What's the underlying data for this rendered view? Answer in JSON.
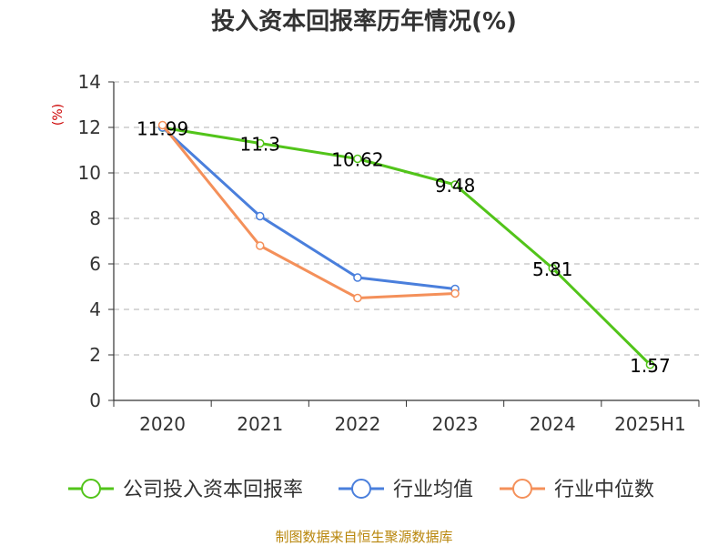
{
  "chart_data": {
    "type": "line",
    "title": "投入资本回报率历年情况(%)",
    "unit_label": "(%)",
    "categories": [
      "2020",
      "2021",
      "2022",
      "2023",
      "2024",
      "2025H1"
    ],
    "ylim": [
      0,
      14
    ],
    "yticks": [
      0,
      2,
      4,
      6,
      8,
      10,
      12,
      14
    ],
    "grid": true,
    "legend_position": "bottom",
    "series": [
      {
        "name": "公司投入资本回报率",
        "color": "#52c41a",
        "values": [
          11.99,
          11.3,
          10.62,
          9.48,
          5.81,
          1.57
        ],
        "labels": [
          "11.99",
          "11.3",
          "10.62",
          "9.48",
          "5.81",
          "1.57"
        ]
      },
      {
        "name": "行业均值",
        "color": "#4a7fdc",
        "values": [
          12.0,
          8.1,
          5.4,
          4.9,
          null,
          null
        ]
      },
      {
        "name": "行业中位数",
        "color": "#f4905a",
        "values": [
          12.1,
          6.8,
          4.5,
          4.7,
          null,
          null
        ]
      }
    ]
  },
  "source": "制图数据来自恒生聚源数据库"
}
